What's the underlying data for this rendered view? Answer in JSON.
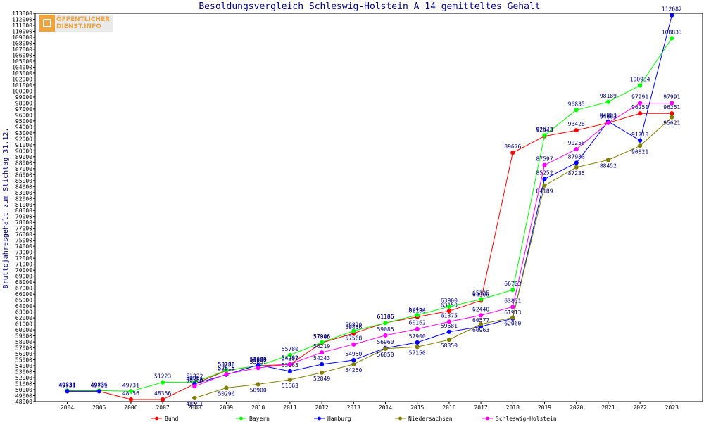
{
  "chart_data": {
    "type": "line",
    "title": "Besoldungsvergleich Schleswig-Holstein A 14 gemitteltes Gehalt",
    "ylabel": "Bruttojahresgehalt zum Stichtag 31.12.",
    "xlabel": "",
    "ylim": [
      48000,
      113000
    ],
    "ytick_step": 1000,
    "grid": false,
    "legend_position": "bottom",
    "categories": [
      "2004",
      "2005",
      "2006",
      "2007",
      "2008",
      "2009",
      "2010",
      "2011",
      "2012",
      "2013",
      "2014",
      "2015",
      "2016",
      "2017",
      "2018",
      "2019",
      "2020",
      "2021",
      "2022",
      "2023"
    ],
    "series": [
      {
        "name": "Bund",
        "color": "#ff0000",
        "values": [
          49731,
          49731,
          48356,
          48356,
          50961,
          53188,
          53989,
          54207,
          57845,
          59436,
          61186,
          62180,
          63150,
          64906,
          89676,
          92443,
          93428,
          94663,
          96251,
          96251
        ]
      },
      {
        "name": "Bayern",
        "color": "#00ff00",
        "values": [
          49836,
          49836,
          49731,
          51223,
          51222,
          53236,
          54008,
          55780,
          57906,
          59820,
          61165,
          62467,
          63900,
          65125,
          66703,
          92573,
          96835,
          98189,
          100934,
          108833
        ]
      },
      {
        "name": "Hamburg",
        "color": "#0000ff",
        "values": [
          49731,
          49731,
          null,
          null,
          50961,
          52515,
          54134,
          53063,
          54243,
          54950,
          56960,
          57900,
          59681,
          60577,
          61913,
          85252,
          87980,
          94903,
          91710,
          112682
        ]
      },
      {
        "name": "Niedersachsen",
        "color": "#808000",
        "values": [
          null,
          null,
          null,
          null,
          48591,
          50296,
          50900,
          51663,
          52849,
          54250,
          56850,
          57150,
          58350,
          60963,
          62060,
          84189,
          87235,
          88452,
          90821,
          95621
        ]
      },
      {
        "name": "Schleswig-Holstein",
        "color": "#ff00ff",
        "values": [
          null,
          null,
          null,
          null,
          50560,
          52615,
          53637,
          54282,
          56219,
          57568,
          59085,
          60162,
          61375,
          62440,
          63851,
          87597,
          90256,
          94663,
          97991,
          97991
        ]
      }
    ]
  },
  "logo": {
    "line1": "ÖFFENTLICHER",
    "line2": "DIENST.INFO"
  }
}
